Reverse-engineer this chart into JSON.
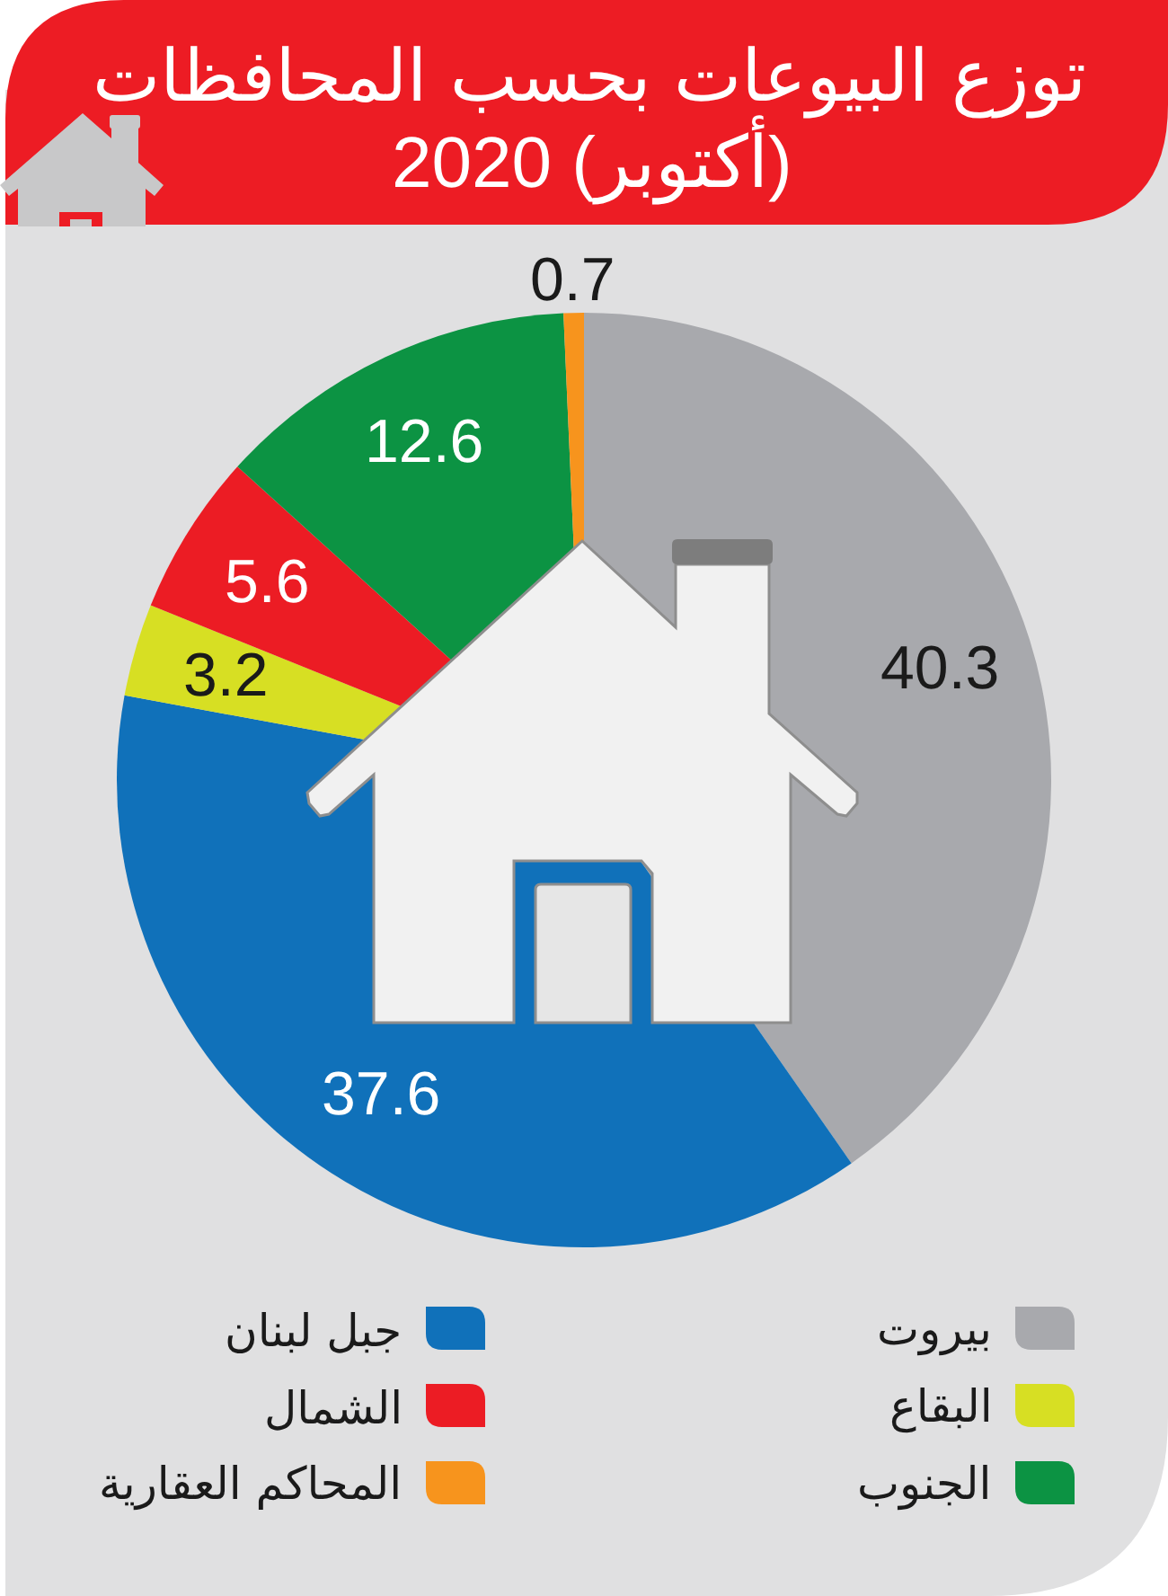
{
  "chart_data": {
    "type": "pie",
    "title": "توزع البيوعات بحسب المحافظات",
    "subtitle": "2020 (أكتوبر)",
    "categories": [
      "بيروت",
      "جبل لبنان",
      "البقاع",
      "الشمال",
      "الجنوب",
      "المحاكم العقارية"
    ],
    "values": [
      40.3,
      37.6,
      3.2,
      5.6,
      12.6,
      0.7
    ],
    "colors": [
      "#a8a9ad",
      "#1071ba",
      "#d7df23",
      "#ec1c24",
      "#0c9343",
      "#f7941d"
    ],
    "data_labels": true,
    "legend": "bottom"
  }
}
